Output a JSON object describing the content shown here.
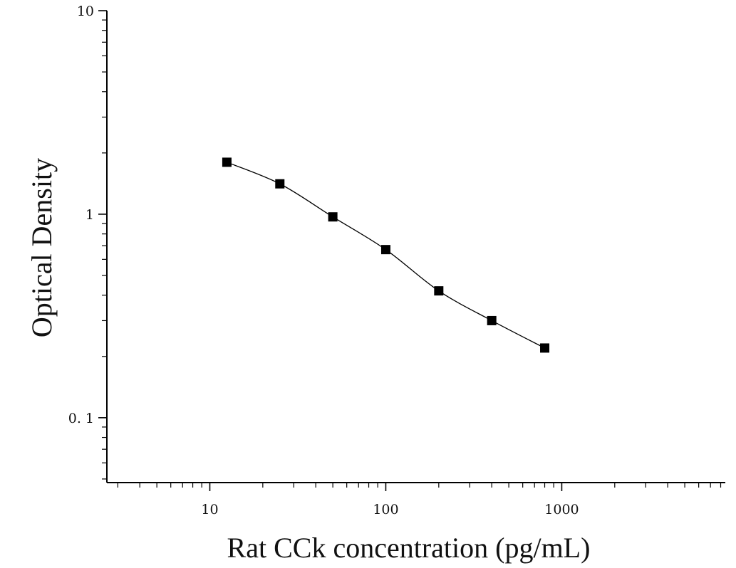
{
  "chart_data": {
    "type": "scatter",
    "title": "",
    "xlabel": "Rat CCk concentration (pg/mL)",
    "ylabel": "Optical Density",
    "x_scale": "log",
    "y_scale": "log",
    "xlim": [
      2.6,
      8500
    ],
    "ylim": [
      0.048,
      10
    ],
    "grid": false,
    "x_ticks": [
      {
        "value": 10,
        "label": "10"
      },
      {
        "value": 100,
        "label": "100"
      },
      {
        "value": 1000,
        "label": "1000"
      }
    ],
    "y_ticks": [
      {
        "value": 0.1,
        "label": "0. 1"
      },
      {
        "value": 1,
        "label": "1"
      },
      {
        "value": 10,
        "label": "10"
      }
    ],
    "series": [
      {
        "marker": "square",
        "color": "#000000",
        "fit_line": true,
        "points": [
          {
            "x": 12.5,
            "y": 1.8
          },
          {
            "x": 25,
            "y": 1.41
          },
          {
            "x": 50,
            "y": 0.97
          },
          {
            "x": 100,
            "y": 0.67
          },
          {
            "x": 200,
            "y": 0.42
          },
          {
            "x": 400,
            "y": 0.3
          },
          {
            "x": 800,
            "y": 0.22
          }
        ]
      }
    ]
  }
}
